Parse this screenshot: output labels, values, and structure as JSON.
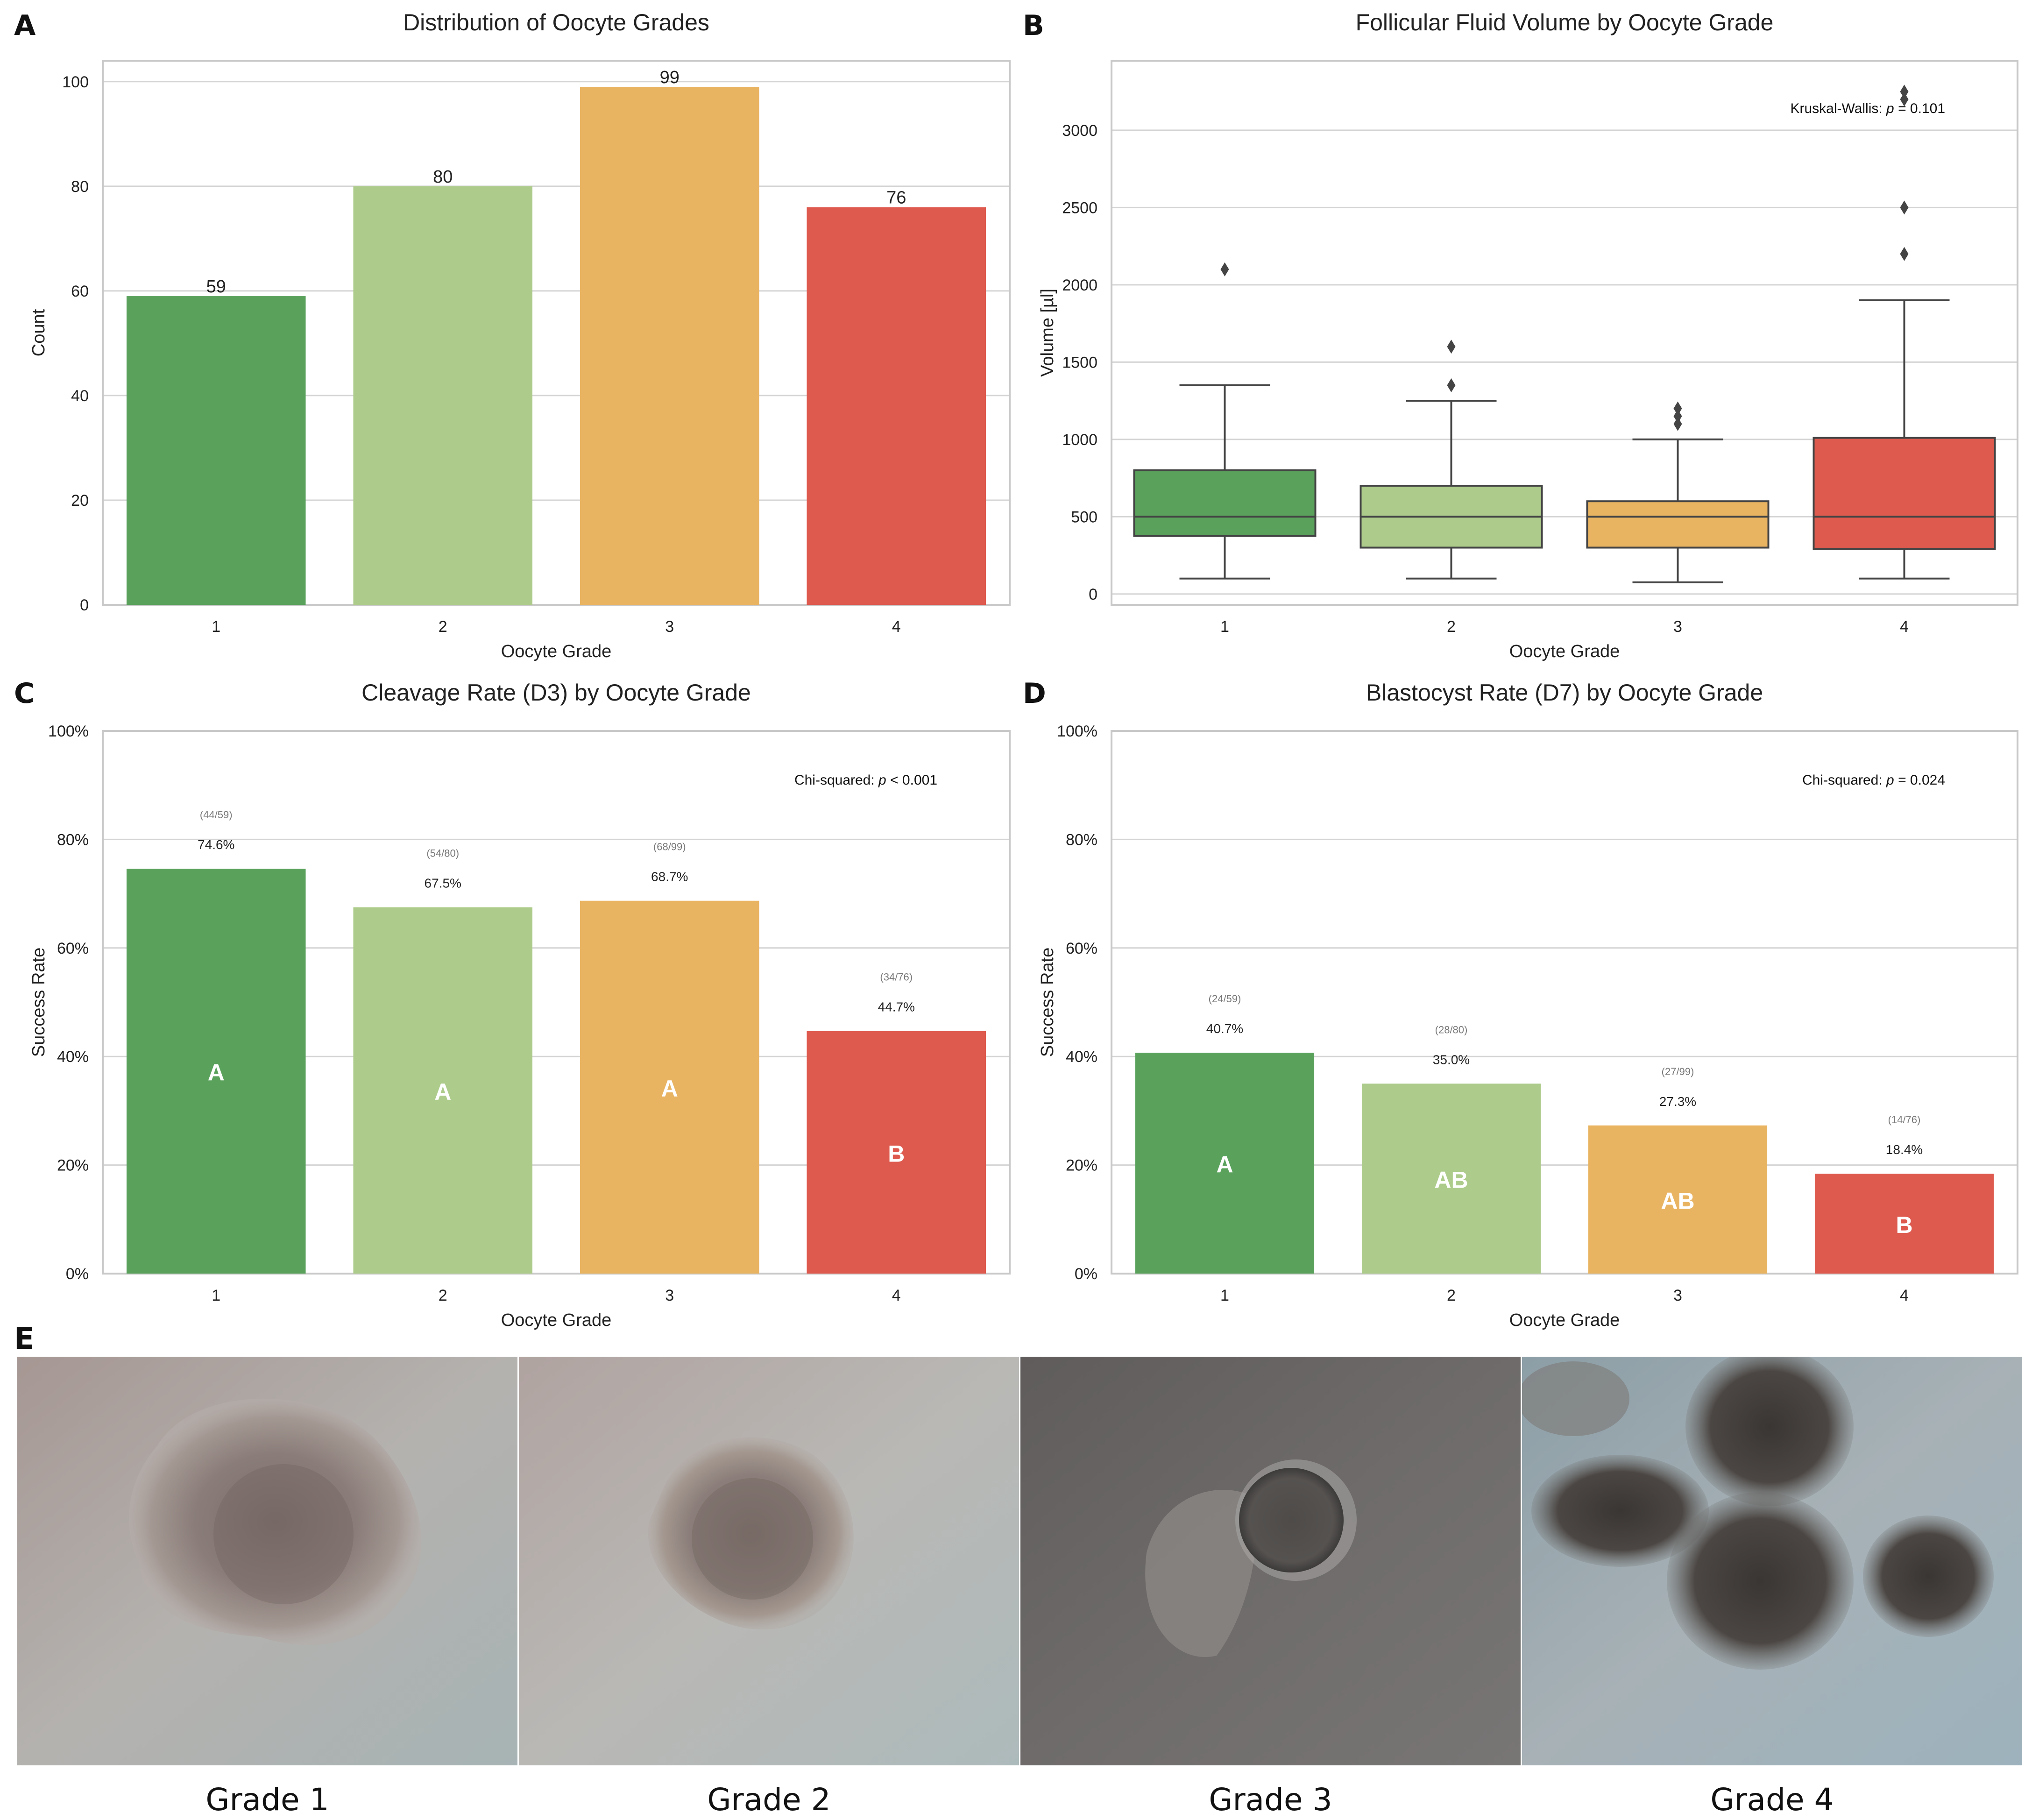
{
  "chart_data": [
    {
      "panel": "A",
      "type": "bar",
      "title": "Distribution of Oocyte Grades",
      "xlabel": "Oocyte Grade",
      "ylabel": "Count",
      "categories": [
        "1",
        "2",
        "3",
        "4"
      ],
      "values": [
        59,
        80,
        99,
        76
      ],
      "value_labels": [
        "59",
        "80",
        "99",
        "76"
      ],
      "ylim": [
        0,
        104
      ],
      "yticks": [
        0,
        20,
        40,
        60,
        80,
        100
      ],
      "ytick_labels": [
        "0",
        "20",
        "40",
        "60",
        "80",
        "100"
      ],
      "grid": true
    },
    {
      "panel": "B",
      "type": "box",
      "title": "Follicular Fluid Volume by Oocyte Grade",
      "xlabel": "Oocyte Grade",
      "ylabel": "Volume [µl]",
      "categories": [
        "1",
        "2",
        "3",
        "4"
      ],
      "ylim": [
        -70,
        3450
      ],
      "yticks": [
        0,
        500,
        1000,
        1500,
        2000,
        2500,
        3000
      ],
      "ytick_labels": [
        "0",
        "500",
        "1000",
        "1500",
        "2000",
        "2500",
        "3000"
      ],
      "boxes": [
        {
          "whisker_low": 100,
          "q1": 375,
          "median": 500,
          "q3": 800,
          "whisker_high": 1350,
          "outliers": [
            2100
          ]
        },
        {
          "whisker_low": 100,
          "q1": 300,
          "median": 500,
          "q3": 700,
          "whisker_high": 1250,
          "outliers": [
            1350,
            1600
          ]
        },
        {
          "whisker_low": 75,
          "q1": 300,
          "median": 500,
          "q3": 600,
          "whisker_high": 1000,
          "outliers": [
            1100,
            1150,
            1200
          ]
        },
        {
          "whisker_low": 100,
          "q1": 290,
          "median": 500,
          "q3": 1010,
          "whisker_high": 1900,
          "outliers": [
            2200,
            2500,
            3200,
            3250
          ]
        }
      ],
      "annotation_prefix": "Kruskal-Wallis: ",
      "annotation_p": "p",
      "annotation_suffix": " = 0.101",
      "grid": true
    },
    {
      "panel": "C",
      "type": "bar",
      "title": "Cleavage Rate (D3) by Oocyte Grade",
      "xlabel": "Oocyte Grade",
      "ylabel": "Success Rate",
      "categories": [
        "1",
        "2",
        "3",
        "4"
      ],
      "values": [
        0.746,
        0.675,
        0.687,
        0.447
      ],
      "value_labels": [
        "74.6%",
        "67.5%",
        "68.7%",
        "44.7%"
      ],
      "counts": [
        "(44/59)",
        "(54/80)",
        "(68/99)",
        "(34/76)"
      ],
      "group_letters": [
        "A",
        "A",
        "A",
        "B"
      ],
      "ylim": [
        0,
        1
      ],
      "yticks": [
        0,
        0.2,
        0.4,
        0.6,
        0.8,
        1.0
      ],
      "ytick_labels": [
        "0%",
        "20%",
        "40%",
        "60%",
        "80%",
        "100%"
      ],
      "annotation_prefix": "Chi-squared: ",
      "annotation_p": "p",
      "annotation_suffix": " < 0.001",
      "grid": true
    },
    {
      "panel": "D",
      "type": "bar",
      "title": "Blastocyst Rate (D7) by Oocyte Grade",
      "xlabel": "Oocyte Grade",
      "ylabel": "Success Rate",
      "categories": [
        "1",
        "2",
        "3",
        "4"
      ],
      "values": [
        0.407,
        0.35,
        0.273,
        0.184
      ],
      "value_labels": [
        "40.7%",
        "35.0%",
        "27.3%",
        "18.4%"
      ],
      "counts": [
        "(24/59)",
        "(28/80)",
        "(27/99)",
        "(14/76)"
      ],
      "group_letters": [
        "A",
        "AB",
        "AB",
        "B"
      ],
      "ylim": [
        0,
        1
      ],
      "yticks": [
        0,
        0.2,
        0.4,
        0.6,
        0.8,
        1.0
      ],
      "ytick_labels": [
        "0%",
        "20%",
        "40%",
        "60%",
        "80%",
        "100%"
      ],
      "annotation_prefix": "Chi-squared: ",
      "annotation_p": "p",
      "annotation_suffix": " = 0.024",
      "grid": true
    }
  ],
  "colors": {
    "grade_1": "#5aa25c",
    "grade_2": "#adcc8b",
    "grade_3": "#e9b462",
    "grade_4": "#de5a4e",
    "grid": "#d4d4d4",
    "axis_frame": "#c8c8c8",
    "text": "#222222",
    "count_text": "#777777",
    "box_line": "#444444"
  },
  "panel_letters": [
    "A",
    "B",
    "C",
    "D",
    "E"
  ],
  "panel_e": {
    "letter": "E",
    "images": [
      {
        "label": "Grade 1",
        "icon": "oocyte-grade-1-micrograph"
      },
      {
        "label": "Grade 2",
        "icon": "oocyte-grade-2-micrograph"
      },
      {
        "label": "Grade 3",
        "icon": "oocyte-grade-3-micrograph"
      },
      {
        "label": "Grade 4",
        "icon": "oocyte-grade-4-micrograph"
      }
    ]
  }
}
